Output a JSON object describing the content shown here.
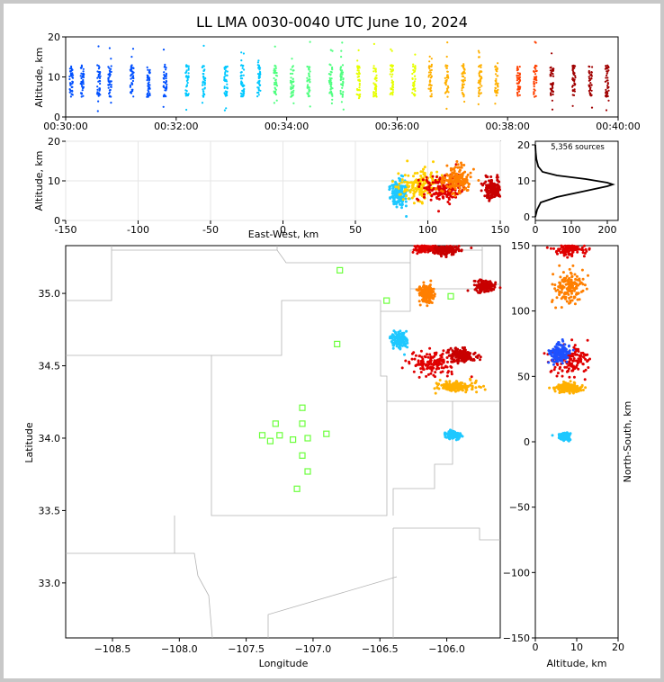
{
  "figure": {
    "title": "LL LMA 0030-0040 UTC June 10, 2024"
  },
  "chart_data": [
    {
      "panel": "altitude-time",
      "type": "scatter",
      "xlabel": "",
      "ylabel": "Altitude, km",
      "x_ticks": [
        "00:30:00",
        "00:32:00",
        "00:34:00",
        "00:36:00",
        "00:38:00",
        "00:40:00"
      ],
      "xlim_minutes": [
        0,
        10
      ],
      "y_ticks": [
        0,
        10,
        20
      ],
      "ylim": [
        0,
        20
      ],
      "color_encoding": "time (blue to dark red)",
      "flash_times_minutes": [
        0.1,
        0.3,
        0.6,
        0.8,
        1.2,
        1.5,
        1.8,
        2.2,
        2.5,
        2.9,
        3.2,
        3.5,
        3.8,
        4.1,
        4.4,
        4.8,
        5.0,
        5.3,
        5.6,
        5.9,
        6.3,
        6.6,
        6.9,
        7.2,
        7.5,
        7.8,
        8.2,
        8.5,
        8.8,
        9.2,
        9.5,
        9.8
      ],
      "typical_altitude_km": [
        5,
        13
      ],
      "points": [
        {
          "t": 0.1,
          "z": 7.5
        },
        {
          "t": 0.3,
          "z": 5.8
        },
        {
          "t": 0.6,
          "z": 9.2
        },
        {
          "t": 0.8,
          "z": 11.5
        },
        {
          "t": 1.2,
          "z": 8.1
        },
        {
          "t": 1.5,
          "z": 6.4
        },
        {
          "t": 1.8,
          "z": 10.3
        },
        {
          "t": 2.2,
          "z": 7.0
        },
        {
          "t": 2.5,
          "z": 12.1
        },
        {
          "t": 2.9,
          "z": 8.7
        },
        {
          "t": 3.2,
          "z": 6.9
        },
        {
          "t": 3.5,
          "z": 9.8
        },
        {
          "t": 3.8,
          "z": 11.0
        },
        {
          "t": 4.1,
          "z": 7.7
        },
        {
          "t": 4.4,
          "z": 9.1
        },
        {
          "t": 4.8,
          "z": 8.4
        },
        {
          "t": 5.0,
          "z": 10.6
        },
        {
          "t": 5.3,
          "z": 7.3
        },
        {
          "t": 5.6,
          "z": 12.4
        },
        {
          "t": 5.9,
          "z": 8.9
        },
        {
          "t": 6.3,
          "z": 9.5
        },
        {
          "t": 6.6,
          "z": 7.9
        },
        {
          "t": 6.9,
          "z": 11.2
        },
        {
          "t": 7.2,
          "z": 6.6
        },
        {
          "t": 7.5,
          "z": 9.0
        },
        {
          "t": 7.8,
          "z": 10.4
        },
        {
          "t": 8.2,
          "z": 8.2
        },
        {
          "t": 8.5,
          "z": 7.1
        },
        {
          "t": 8.8,
          "z": 9.7
        },
        {
          "t": 9.2,
          "z": 8.5
        },
        {
          "t": 9.5,
          "z": 6.8
        },
        {
          "t": 9.8,
          "z": 10.1
        }
      ]
    },
    {
      "panel": "altitude-eastwest",
      "type": "scatter",
      "xlabel": "East-West, km",
      "ylabel": "Altitude, km",
      "x_ticks": [
        -150,
        -100,
        -50,
        0,
        50,
        100,
        150
      ],
      "xlim": [
        -150,
        150
      ],
      "y_ticks": [
        0,
        10,
        20
      ],
      "ylim": [
        0,
        20
      ],
      "clusters": [
        {
          "x": 80,
          "z": 7,
          "spread_x": 5,
          "spread_z": 3,
          "color": "#1ec8ff"
        },
        {
          "x": 95,
          "z": 9,
          "spread_x": 12,
          "spread_z": 3,
          "color": "#ffd000"
        },
        {
          "x": 110,
          "z": 8,
          "spread_x": 12,
          "spread_z": 3,
          "color": "#e00000"
        },
        {
          "x": 120,
          "z": 10,
          "spread_x": 8,
          "spread_z": 3,
          "color": "#ff7f00"
        },
        {
          "x": 145,
          "z": 8,
          "spread_x": 5,
          "spread_z": 2,
          "color": "#c80000"
        }
      ]
    },
    {
      "panel": "altitude-histogram",
      "type": "line",
      "annotation": "5,356 sources",
      "x_ticks": [
        0,
        100,
        200
      ],
      "xlim": [
        0,
        230
      ],
      "y_ticks": [
        0,
        10,
        20
      ],
      "ylim": [
        -1,
        21
      ],
      "profile": [
        {
          "count": 0,
          "z": 0
        },
        {
          "count": 5,
          "z": 2
        },
        {
          "count": 15,
          "z": 4
        },
        {
          "count": 60,
          "z": 5.5
        },
        {
          "count": 130,
          "z": 7
        },
        {
          "count": 200,
          "z": 8.5
        },
        {
          "count": 215,
          "z": 9
        },
        {
          "count": 200,
          "z": 9.5
        },
        {
          "count": 140,
          "z": 10.5
        },
        {
          "count": 60,
          "z": 11.5
        },
        {
          "count": 20,
          "z": 12.5
        },
        {
          "count": 8,
          "z": 14
        },
        {
          "count": 3,
          "z": 16
        },
        {
          "count": 1,
          "z": 18
        },
        {
          "count": 0,
          "z": 20
        }
      ]
    },
    {
      "panel": "plan-view",
      "type": "scatter",
      "xlabel": "Longitude",
      "ylabel": "Latitude",
      "x_ticks": [
        -108.5,
        -108.0,
        -107.5,
        -107.0,
        -106.5,
        -106.0
      ],
      "xlim": [
        -108.85,
        -105.6
      ],
      "y_ticks": [
        33.0,
        33.5,
        34.0,
        34.5,
        35.0
      ],
      "ylim": [
        32.62,
        35.33
      ],
      "stations": [
        {
          "lon": -106.8,
          "lat": 35.16
        },
        {
          "lon": -106.45,
          "lat": 34.95
        },
        {
          "lon": -105.97,
          "lat": 34.98
        },
        {
          "lon": -106.82,
          "lat": 34.65
        },
        {
          "lon": -107.08,
          "lat": 34.21
        },
        {
          "lon": -107.28,
          "lat": 34.1
        },
        {
          "lon": -107.08,
          "lat": 34.1
        },
        {
          "lon": -107.38,
          "lat": 34.02
        },
        {
          "lon": -107.25,
          "lat": 34.02
        },
        {
          "lon": -107.32,
          "lat": 33.98
        },
        {
          "lon": -107.15,
          "lat": 33.99
        },
        {
          "lon": -107.04,
          "lat": 34.0
        },
        {
          "lon": -106.9,
          "lat": 34.03
        },
        {
          "lon": -107.08,
          "lat": 33.88
        },
        {
          "lon": -107.04,
          "lat": 33.77
        },
        {
          "lon": -107.12,
          "lat": 33.65
        }
      ],
      "clusters": [
        {
          "lon": -106.15,
          "lat": 35.32,
          "spread_lon": 0.1,
          "spread_lat": 0.04,
          "color": "#e00000"
        },
        {
          "lon": -106.0,
          "lat": 35.3,
          "spread_lon": 0.08,
          "spread_lat": 0.03,
          "color": "#c80000"
        },
        {
          "lon": -106.15,
          "lat": 35.0,
          "spread_lon": 0.05,
          "spread_lat": 0.05,
          "color": "#ff7f00"
        },
        {
          "lon": -105.72,
          "lat": 35.05,
          "spread_lon": 0.06,
          "spread_lat": 0.03,
          "color": "#c80000"
        },
        {
          "lon": -106.35,
          "lat": 34.67,
          "spread_lon": 0.05,
          "spread_lat": 0.05,
          "color": "#1ec8ff"
        },
        {
          "lon": -106.1,
          "lat": 34.52,
          "spread_lon": 0.15,
          "spread_lat": 0.07,
          "color": "#e00000"
        },
        {
          "lon": -105.88,
          "lat": 34.57,
          "spread_lon": 0.08,
          "spread_lat": 0.04,
          "color": "#c80000"
        },
        {
          "lon": -105.92,
          "lat": 34.36,
          "spread_lon": 0.12,
          "spread_lat": 0.03,
          "color": "#ffb000"
        },
        {
          "lon": -105.95,
          "lat": 34.02,
          "spread_lon": 0.05,
          "spread_lat": 0.02,
          "color": "#1ec8ff"
        }
      ]
    },
    {
      "panel": "northsouth-altitude",
      "type": "scatter",
      "xlabel": "Altitude, km",
      "ylabel": "North-South, km",
      "x_ticks": [
        0,
        10,
        20
      ],
      "xlim": [
        0,
        20
      ],
      "y_ticks": [
        -150,
        -100,
        -50,
        0,
        50,
        100,
        150
      ],
      "ylim": [
        -150,
        150
      ],
      "clusters": [
        {
          "z": 8,
          "y": 148,
          "spread_z": 3,
          "spread_y": 4,
          "color": "#e00000"
        },
        {
          "z": 8,
          "y": 118,
          "spread_z": 3,
          "spread_y": 10,
          "color": "#ff7f00"
        },
        {
          "z": 8,
          "y": 63,
          "spread_z": 4,
          "spread_y": 10,
          "color": "#e00000"
        },
        {
          "z": 6,
          "y": 68,
          "spread_z": 2,
          "spread_y": 6,
          "color": "#1e50ff"
        },
        {
          "z": 8,
          "y": 41,
          "spread_z": 3,
          "spread_y": 3,
          "color": "#ffb000"
        },
        {
          "z": 7,
          "y": 4,
          "spread_z": 1,
          "spread_y": 2,
          "color": "#1ec8ff"
        }
      ]
    }
  ]
}
